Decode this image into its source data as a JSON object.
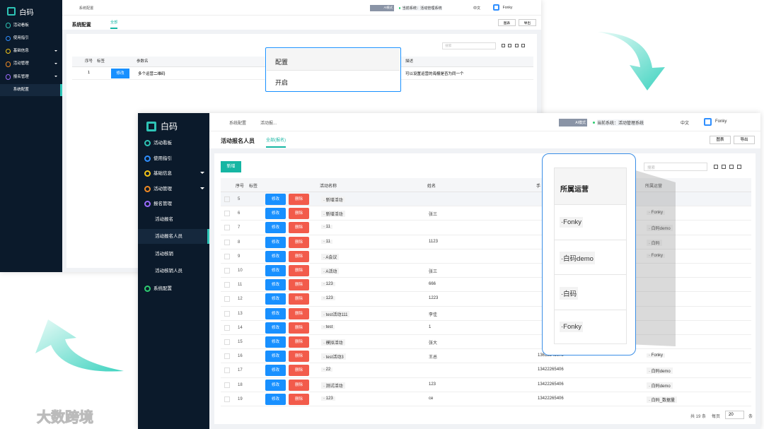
{
  "back": {
    "logo": "白码",
    "menu": [
      "活动看板",
      "使用指引",
      "基础信息",
      "活动管理",
      "报名管理",
      "系统配置"
    ],
    "breadcrumb": "系统配置",
    "mode": "AI模式",
    "system": "当前系统：活动管理系统",
    "lang": "中文",
    "user": "Fonky",
    "title": "系统配置",
    "tab": "全部",
    "chart_btn": "图表",
    "export_btn": "导出",
    "search": "搜索",
    "headers": [
      "序号",
      "标签",
      "参数名",
      "描述"
    ],
    "row": {
      "index": "1",
      "edit": "修改",
      "name": "多个运营二维码",
      "desc": "可以设置运营的海报是否为同一个"
    }
  },
  "popup_config": {
    "header": "配置",
    "value": "开启"
  },
  "front": {
    "logo": "白码",
    "menu": [
      "活动看板",
      "使用指引",
      "基础信息",
      "活动管理",
      "报名管理",
      "活动报名",
      "活动报名人员",
      "活动核销",
      "活动核销人员",
      "系统配置"
    ],
    "breadcrumb": [
      "系统配置",
      "活动报..."
    ],
    "mode": "AI模式",
    "system": "当前系统：活动管理系统",
    "lang": "中文",
    "user": "Fonky",
    "title": "活动报名人员",
    "tab": "全部(报名)",
    "chart_btn": "图表",
    "export_btn": "导出",
    "add_btn": "新增",
    "search": "搜索",
    "headers": [
      "序号",
      "标签",
      "活动名称",
      "姓名",
      "手",
      "所属运营"
    ],
    "edit": "修改",
    "delete": "删除",
    "rows": [
      [
        "5",
        "· 新增活动",
        null,
        null,
        null
      ],
      [
        "6",
        "· 新增活动",
        "张三",
        null,
        "· Fonky"
      ],
      [
        "7",
        "· 11",
        null,
        null,
        "· 白码demo"
      ],
      [
        "8",
        "· 11",
        "1123",
        null,
        "· 白码"
      ],
      [
        "9",
        "· A会议",
        null,
        null,
        "· Fonky"
      ],
      [
        "10",
        "· A活动",
        "张三",
        null,
        null
      ],
      [
        "11",
        "· 123",
        "666",
        null,
        null
      ],
      [
        "12",
        "· 123",
        "1223",
        null,
        null
      ],
      [
        "13",
        "· test活动111",
        "李佳",
        null,
        null
      ],
      [
        "14",
        "· test",
        "1",
        null,
        null
      ],
      [
        "15",
        "· 模拟活动",
        "张大",
        null,
        null
      ],
      [
        "16",
        "· test活动3",
        "王总",
        "13612345678",
        "· Fonky"
      ],
      [
        "17",
        "· 22",
        null,
        "13422265406",
        "· 白码demo"
      ],
      [
        "18",
        "· 测试活动",
        "123",
        "13422265406",
        "· 白码demo"
      ],
      [
        "19",
        "· 123",
        "ce",
        "13422265406",
        "· 白码_数据量"
      ]
    ],
    "pager": {
      "total": "共 19 条",
      "per": "每页",
      "size": "20",
      "unit": "条"
    }
  },
  "popup_operator": {
    "header": "所属运营",
    "items": [
      "·Fonky",
      "·白码demo",
      "·白码",
      "·Fonky"
    ]
  },
  "watermark": "大数跨境"
}
